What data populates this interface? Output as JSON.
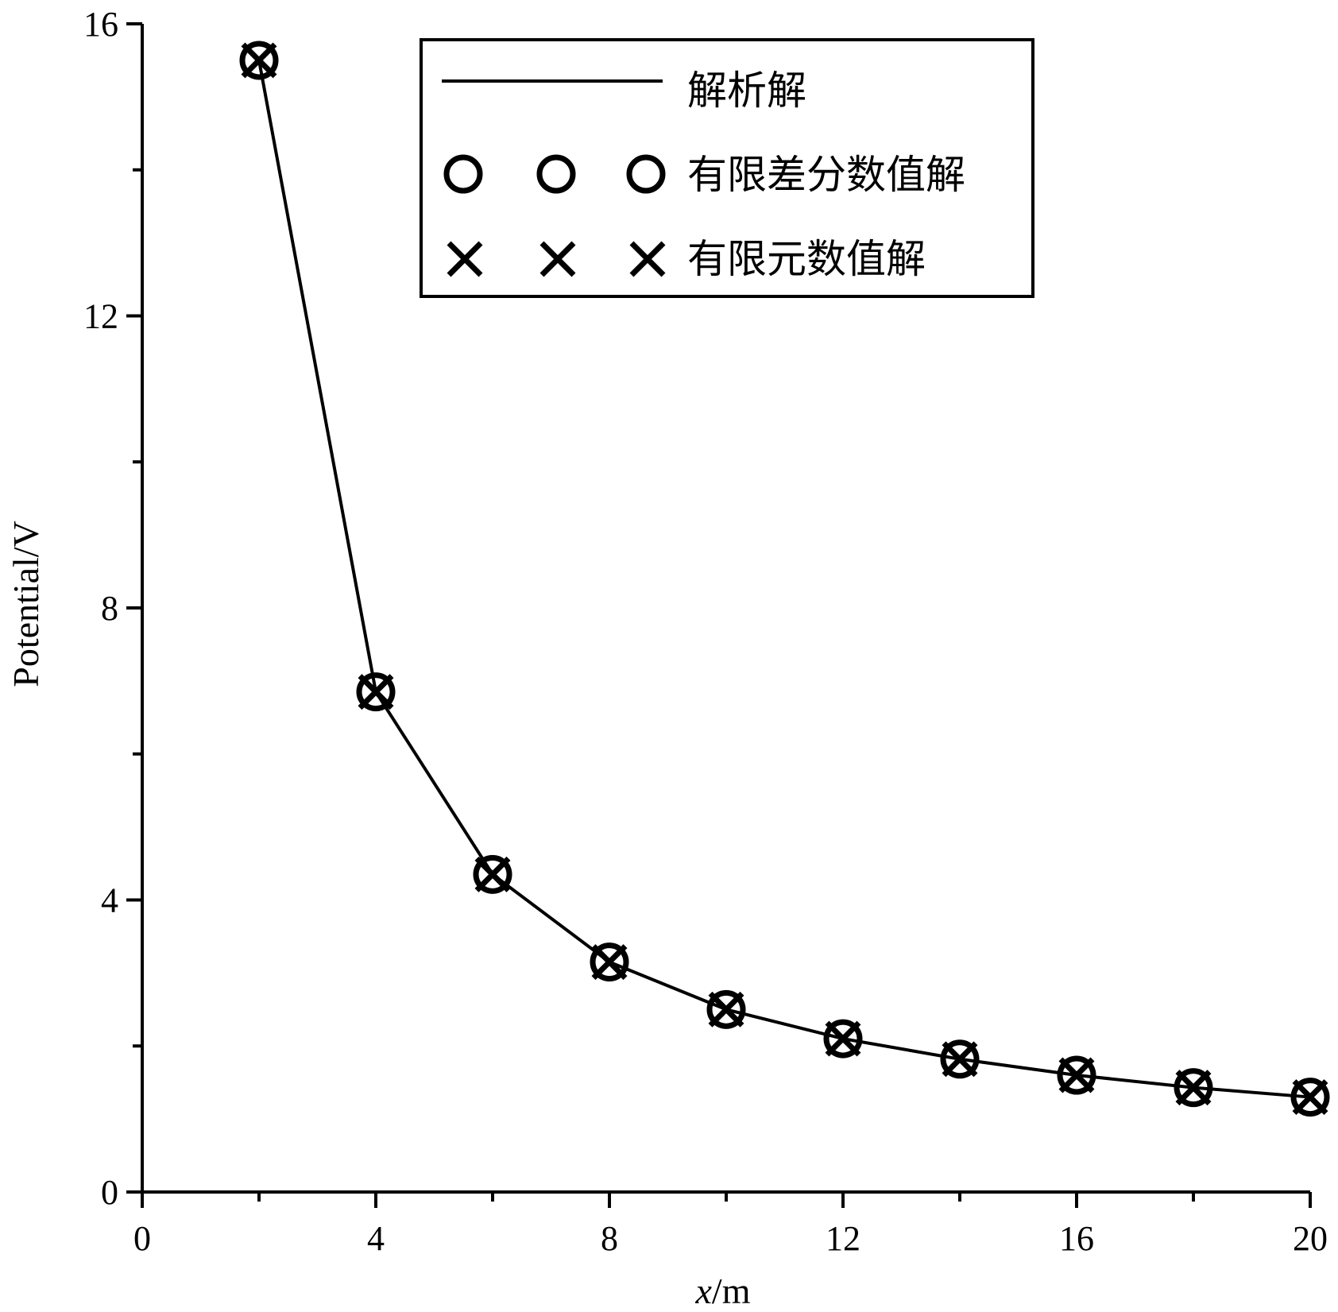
{
  "chart_data": {
    "type": "line",
    "xlabel": {
      "italic": "x",
      "rest": "/m"
    },
    "ylabel": "Potential/V",
    "xlim": [
      0,
      20
    ],
    "ylim": [
      0,
      16
    ],
    "x_ticks": [
      0,
      4,
      8,
      12,
      16,
      20
    ],
    "x_minor_ticks": [
      2,
      6,
      10,
      14,
      18
    ],
    "y_ticks": [
      0,
      4,
      8,
      12,
      16
    ],
    "y_minor_ticks": [
      2,
      6,
      10,
      14
    ],
    "grid": false,
    "legend_position": "top-center",
    "x": [
      2,
      4,
      6,
      8,
      10,
      12,
      14,
      16,
      18,
      20
    ],
    "series": [
      {
        "name": "解析解",
        "style": "line",
        "values": [
          15.5,
          6.85,
          4.35,
          3.15,
          2.5,
          2.1,
          1.82,
          1.6,
          1.43,
          1.3
        ]
      },
      {
        "name": "有限差分数值解",
        "style": "circle",
        "values": [
          15.5,
          6.85,
          4.35,
          3.15,
          2.5,
          2.1,
          1.82,
          1.6,
          1.43,
          1.3
        ]
      },
      {
        "name": "有限元数值解",
        "style": "cross",
        "values": [
          15.5,
          6.85,
          4.35,
          3.15,
          2.5,
          2.1,
          1.82,
          1.6,
          1.43,
          1.3
        ]
      }
    ],
    "line_color": "#000000"
  }
}
